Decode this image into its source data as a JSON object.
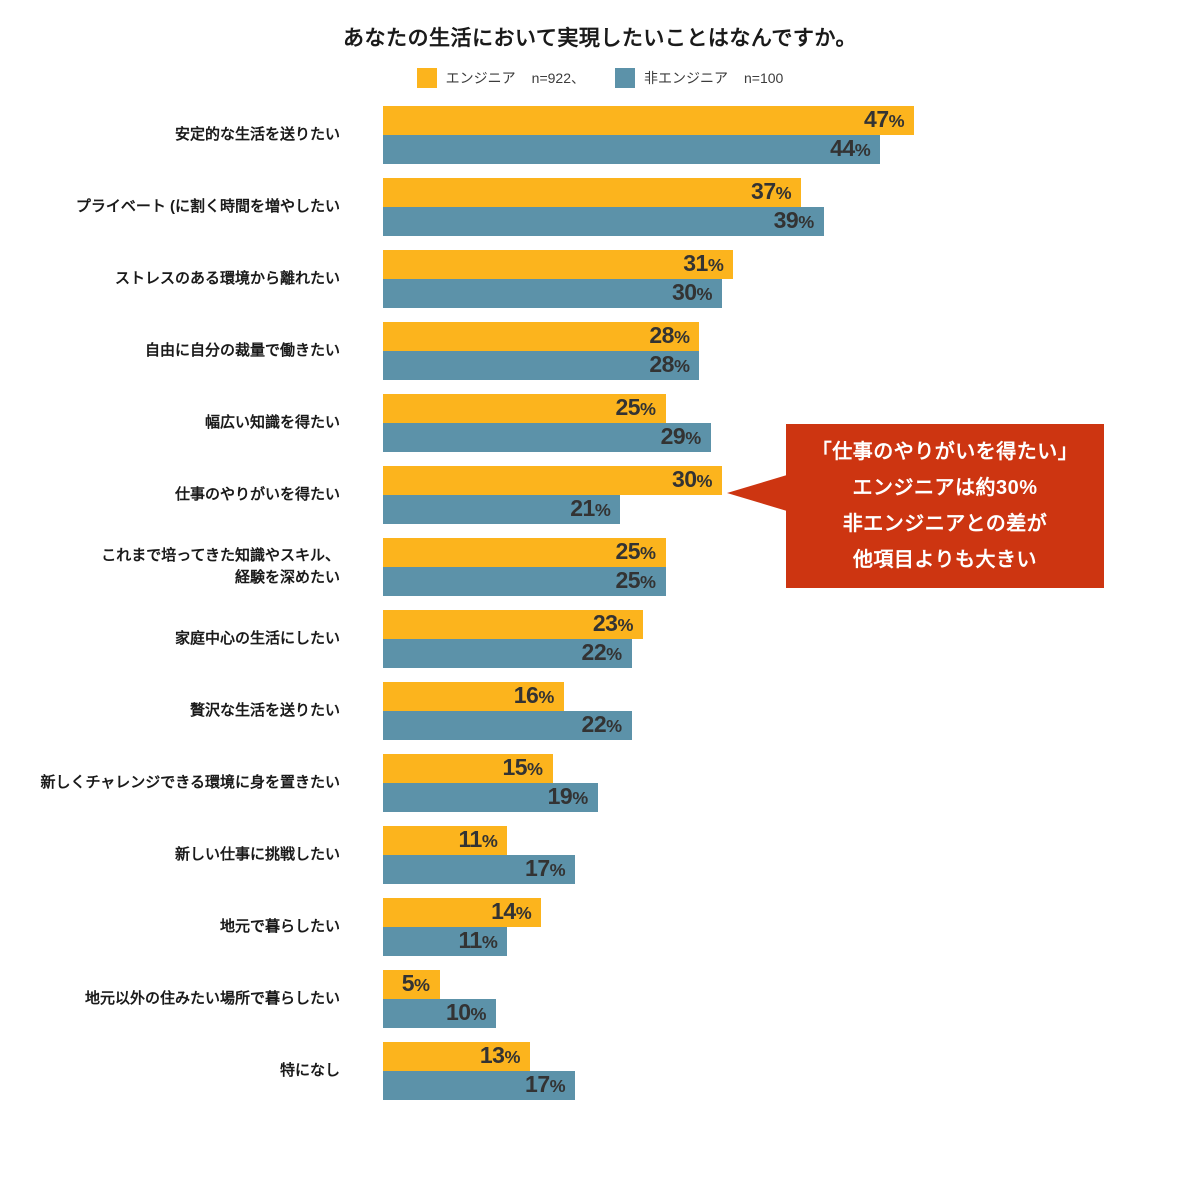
{
  "title": "あなたの生活において実現したいことはなんですか。",
  "legend": {
    "items": [
      {
        "label": "エンジニア",
        "n": "n=922、",
        "color": "#fcb41d"
      },
      {
        "label": "非エンジニア",
        "n": "n=100",
        "color": "#5c92a9"
      }
    ]
  },
  "chart_data": {
    "type": "bar",
    "orientation": "horizontal",
    "unit": "%",
    "xlim": [
      0,
      50
    ],
    "grid": false,
    "value_labels": "inside-end",
    "categories": [
      "安定的な生活を送りたい",
      "プライベート (に割く時間を増やしたい",
      "ストレスのある環境から離れたい",
      "自由に自分の裁量で働きたい",
      "幅広い知識を得たい",
      "仕事のやりがいを得たい",
      "これまで培ってきた知識やスキル、\n経験を深めたい",
      "家庭中心の生活にしたい",
      "贅沢な生活を送りたい",
      "新しくチャレンジできる環境に身を置きたい",
      "新しい仕事に挑戦したい",
      "地元で暮らしたい",
      "地元以外の住みたい場所で暮らしたい",
      "特になし"
    ],
    "series": [
      {
        "name": "エンジニア",
        "color": "#fcb41d",
        "values": [
          47,
          37,
          31,
          28,
          25,
          30,
          25,
          23,
          16,
          15,
          11,
          14,
          5,
          13
        ]
      },
      {
        "name": "非エンジニア",
        "color": "#5c92a9",
        "values": [
          44,
          39,
          30,
          28,
          29,
          21,
          25,
          22,
          22,
          19,
          17,
          11,
          10,
          17
        ]
      }
    ]
  },
  "callout": {
    "lines": [
      "「仕事のやりがいを得たい」",
      "エンジニアは約30%",
      "非エンジニアとの差が",
      "他項目よりも大きい"
    ],
    "background_color": "#cd3511",
    "text_color": "#ffffff",
    "target_category": "仕事のやりがいを得たい"
  },
  "colors": {
    "value_label": "#333333",
    "title_text": "#1a1a1a"
  }
}
